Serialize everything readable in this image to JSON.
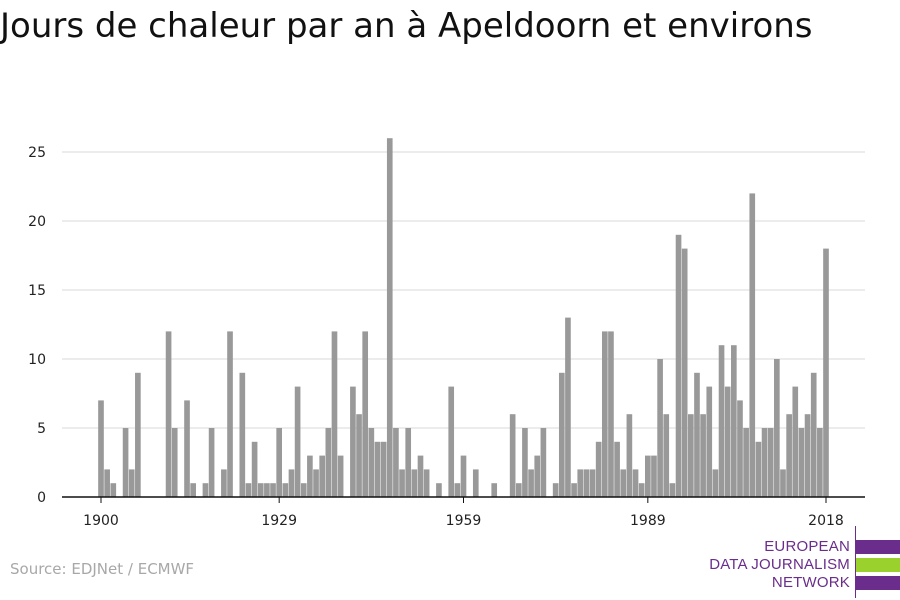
{
  "title": "Jours de chaleur par an à Apeldoorn et environs",
  "source": "Source: EDJNet / ECMWF",
  "logo": {
    "lines": [
      "EUROPEAN",
      "DATA JOURNALISM",
      "NETWORK"
    ],
    "colors": [
      "#6a2d8c",
      "#9bd12d",
      "#6a2d8c"
    ]
  },
  "chart_data": {
    "type": "bar",
    "title": "Jours de chaleur par an à Apeldoorn et environs",
    "xlabel": "",
    "ylabel": "",
    "x_ticks": [
      1900,
      1929,
      1959,
      1989,
      2018
    ],
    "y_ticks": [
      0,
      5,
      10,
      15,
      20,
      25
    ],
    "ylim": [
      0,
      27
    ],
    "xlim": [
      1900,
      2018
    ],
    "grid": true,
    "bar_color": "#999999",
    "x": [
      1900,
      1901,
      1902,
      1903,
      1904,
      1905,
      1906,
      1907,
      1908,
      1909,
      1910,
      1911,
      1912,
      1913,
      1914,
      1915,
      1916,
      1917,
      1918,
      1919,
      1920,
      1921,
      1922,
      1923,
      1924,
      1925,
      1926,
      1927,
      1928,
      1929,
      1930,
      1931,
      1932,
      1933,
      1934,
      1935,
      1936,
      1937,
      1938,
      1939,
      1940,
      1941,
      1942,
      1943,
      1944,
      1945,
      1946,
      1947,
      1948,
      1949,
      1950,
      1951,
      1952,
      1953,
      1954,
      1955,
      1956,
      1957,
      1958,
      1959,
      1960,
      1961,
      1962,
      1963,
      1964,
      1965,
      1966,
      1967,
      1968,
      1969,
      1970,
      1971,
      1972,
      1973,
      1974,
      1975,
      1976,
      1977,
      1978,
      1979,
      1980,
      1981,
      1982,
      1983,
      1984,
      1985,
      1986,
      1987,
      1988,
      1989,
      1990,
      1991,
      1992,
      1993,
      1994,
      1995,
      1996,
      1997,
      1998,
      1999,
      2000,
      2001,
      2002,
      2003,
      2004,
      2005,
      2006,
      2007,
      2008,
      2009,
      2010,
      2011,
      2012,
      2013,
      2014,
      2015,
      2016,
      2017,
      2018
    ],
    "values": [
      7,
      2,
      1,
      0,
      5,
      2,
      9,
      0,
      0,
      0,
      0,
      12,
      5,
      0,
      7,
      1,
      0,
      1,
      5,
      0,
      2,
      12,
      0,
      9,
      1,
      4,
      1,
      1,
      1,
      5,
      1,
      2,
      8,
      1,
      3,
      2,
      3,
      5,
      12,
      3,
      0,
      8,
      6,
      12,
      5,
      4,
      4,
      26,
      5,
      2,
      5,
      2,
      3,
      2,
      0,
      1,
      0,
      8,
      1,
      3,
      0,
      2,
      0,
      0,
      1,
      0,
      0,
      6,
      1,
      5,
      2,
      3,
      5,
      0,
      1,
      9,
      13,
      1,
      2,
      2,
      2,
      4,
      12,
      12,
      4,
      2,
      6,
      2,
      1,
      3,
      3,
      10,
      6,
      1,
      19,
      18,
      6,
      9,
      6,
      8,
      2,
      11,
      8,
      11,
      7,
      5,
      22,
      4,
      5,
      5,
      10,
      2,
      6,
      8,
      5,
      6,
      9,
      5,
      18
    ]
  }
}
